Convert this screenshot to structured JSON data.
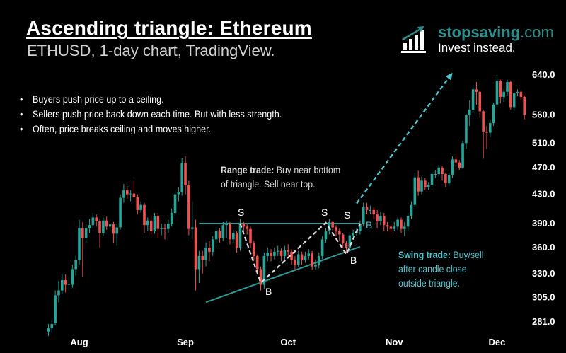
{
  "header": {
    "title": "Ascending triangle: Ethereum",
    "subtitle": "ETHUSD, 1-day chart, TradingView."
  },
  "bullets": [
    "Buyers push price up to a ceiling.",
    "Sellers push price back down each time. But with less strength.",
    "Often, price breaks ceiling and moves higher."
  ],
  "logo": {
    "brand_bold": "stopsaving",
    "brand_suffix": ".com",
    "tagline": "Invest instead.",
    "icon": "bar-chart-up-arrow-icon",
    "color": "#2a8f8d"
  },
  "notes": {
    "range_bold": "Range trade:",
    "range_text_1": " Buy near bottom",
    "range_text_2": "of triangle. Sell near top.",
    "swing_bold": "Swing trade:",
    "swing_text_1": " Buy/sell",
    "swing_text_2": "after candle close",
    "swing_text_3": "outside triangle."
  },
  "labels": {
    "sell": "S",
    "buy": "B"
  },
  "chart_data": {
    "type": "candlestick",
    "symbol": "ETHUSD",
    "interval": "1-day",
    "y_scale": "log",
    "ylim": [
      272,
      660
    ],
    "y_ticks": [
      640.0,
      560.0,
      510.0,
      470.0,
      430.0,
      390.0,
      360.0,
      330.0,
      305.0,
      281.0
    ],
    "y_tick_labels": [
      "640.0",
      "560.0",
      "510.0",
      "470.0",
      "430.0",
      "390.0",
      "360.0",
      "330.0",
      "305.0",
      "281.0"
    ],
    "x_ticks": [
      {
        "label": "Aug",
        "date": "08-01"
      },
      {
        "label": "Sep",
        "date": "09-01"
      },
      {
        "label": "Oct",
        "date": "10-01"
      },
      {
        "label": "Nov",
        "date": "11-01"
      },
      {
        "label": "Dec",
        "date": "12-01"
      }
    ],
    "grid": false,
    "colors": {
      "up": "#26a69a",
      "down": "#ef5350",
      "triangle": "#2a9d9a",
      "breakout": "#4fc6cf",
      "swing": "#dddddd",
      "background": "#000000"
    },
    "candle_fields": [
      "date",
      "open",
      "high",
      "low",
      "close"
    ],
    "candles": [
      [
        "07-23",
        272,
        279,
        268,
        275
      ],
      [
        "07-24",
        275,
        282,
        271,
        279
      ],
      [
        "07-25",
        280,
        312,
        278,
        307
      ],
      [
        "07-26",
        307,
        322,
        300,
        312
      ],
      [
        "07-27",
        312,
        330,
        308,
        323
      ],
      [
        "07-28",
        323,
        329,
        310,
        318
      ],
      [
        "07-29",
        318,
        326,
        312,
        319
      ],
      [
        "07-30",
        318,
        340,
        315,
        335
      ],
      [
        "07-31",
        335,
        350,
        328,
        345
      ],
      [
        "08-01",
        345,
        395,
        340,
        384
      ],
      [
        "08-02",
        384,
        392,
        326,
        372
      ],
      [
        "08-03",
        372,
        390,
        366,
        384
      ],
      [
        "08-04",
        384,
        396,
        378,
        388
      ],
      [
        "08-05",
        388,
        404,
        384,
        398
      ],
      [
        "08-06",
        398,
        402,
        386,
        393
      ],
      [
        "08-07",
        393,
        396,
        360,
        378
      ],
      [
        "08-08",
        378,
        398,
        374,
        394
      ],
      [
        "08-09",
        394,
        399,
        382,
        386
      ],
      [
        "08-10",
        386,
        394,
        380,
        389
      ],
      [
        "08-11",
        389,
        392,
        365,
        377
      ],
      [
        "08-12",
        377,
        390,
        362,
        385
      ],
      [
        "08-13",
        385,
        430,
        382,
        425
      ],
      [
        "08-14",
        425,
        445,
        418,
        436
      ],
      [
        "08-15",
        436,
        442,
        424,
        430
      ],
      [
        "08-16",
        430,
        436,
        420,
        431
      ],
      [
        "08-17",
        431,
        450,
        422,
        426
      ],
      [
        "08-18",
        426,
        430,
        402,
        408
      ],
      [
        "08-19",
        408,
        420,
        404,
        415
      ],
      [
        "08-20",
        415,
        418,
        378,
        388
      ],
      [
        "08-21",
        388,
        398,
        380,
        394
      ],
      [
        "08-22",
        394,
        400,
        376,
        380
      ],
      [
        "08-23",
        380,
        404,
        377,
        400
      ],
      [
        "08-24",
        400,
        404,
        372,
        383
      ],
      [
        "08-25",
        383,
        390,
        375,
        384
      ],
      [
        "08-26",
        384,
        390,
        370,
        383
      ],
      [
        "08-27",
        383,
        395,
        378,
        390
      ],
      [
        "08-28",
        390,
        410,
        386,
        404
      ],
      [
        "08-29",
        404,
        432,
        400,
        430
      ],
      [
        "08-30",
        430,
        440,
        420,
        433
      ],
      [
        "08-31",
        433,
        485,
        428,
        477
      ],
      [
        "09-01",
        477,
        488,
        430,
        443
      ],
      [
        "09-02",
        443,
        450,
        375,
        383
      ],
      [
        "09-03",
        383,
        420,
        370,
        385
      ],
      [
        "09-04",
        385,
        395,
        312,
        335
      ],
      [
        "09-05",
        335,
        356,
        320,
        350
      ],
      [
        "09-06",
        350,
        356,
        330,
        345
      ],
      [
        "09-07",
        345,
        366,
        338,
        360
      ],
      [
        "09-08",
        360,
        368,
        344,
        355
      ],
      [
        "09-09",
        355,
        374,
        350,
        370
      ],
      [
        "09-10",
        370,
        386,
        364,
        380
      ],
      [
        "09-11",
        380,
        384,
        366,
        372
      ],
      [
        "09-12",
        372,
        392,
        368,
        388
      ],
      [
        "09-13",
        388,
        394,
        372,
        390
      ],
      [
        "09-14",
        390,
        392,
        364,
        370
      ],
      [
        "09-15",
        370,
        382,
        366,
        378
      ],
      [
        "09-16",
        378,
        380,
        354,
        360
      ],
      [
        "09-17",
        360,
        396,
        356,
        390
      ],
      [
        "09-18",
        390,
        392,
        378,
        386
      ],
      [
        "09-19",
        386,
        390,
        376,
        383
      ],
      [
        "09-20",
        383,
        386,
        360,
        365
      ],
      [
        "09-21",
        365,
        368,
        345,
        350
      ],
      [
        "09-22",
        350,
        352,
        330,
        335
      ],
      [
        "09-23",
        335,
        338,
        312,
        318
      ],
      [
        "09-24",
        318,
        354,
        314,
        350
      ],
      [
        "09-25",
        350,
        360,
        344,
        354
      ],
      [
        "09-26",
        354,
        358,
        344,
        350
      ],
      [
        "09-27",
        350,
        360,
        346,
        355
      ],
      [
        "09-28",
        355,
        362,
        350,
        356
      ],
      [
        "09-29",
        356,
        359,
        344,
        350
      ],
      [
        "09-30",
        350,
        362,
        346,
        357
      ],
      [
        "10-01",
        357,
        364,
        350,
        355
      ],
      [
        "10-02",
        355,
        358,
        340,
        345
      ],
      [
        "10-03",
        345,
        350,
        334,
        340
      ],
      [
        "10-04",
        340,
        356,
        337,
        352
      ],
      [
        "10-05",
        352,
        355,
        340,
        345
      ],
      [
        "10-06",
        345,
        355,
        342,
        350
      ],
      [
        "10-07",
        350,
        358,
        346,
        353
      ],
      [
        "10-08",
        353,
        356,
        334,
        338
      ],
      [
        "10-09",
        338,
        346,
        334,
        340
      ],
      [
        "10-10",
        340,
        354,
        336,
        350
      ],
      [
        "10-11",
        350,
        374,
        346,
        370
      ],
      [
        "10-12",
        370,
        384,
        366,
        380
      ],
      [
        "10-13",
        380,
        396,
        376,
        392
      ],
      [
        "10-14",
        392,
        394,
        380,
        385
      ],
      [
        "10-15",
        385,
        388,
        374,
        380
      ],
      [
        "10-16",
        380,
        384,
        368,
        376
      ],
      [
        "10-17",
        376,
        378,
        360,
        365
      ],
      [
        "10-18",
        365,
        368,
        354,
        360
      ],
      [
        "10-19",
        360,
        378,
        356,
        375
      ],
      [
        "10-20",
        375,
        382,
        370,
        378
      ],
      [
        "10-21",
        378,
        384,
        374,
        380
      ],
      [
        "10-22",
        380,
        394,
        376,
        390
      ],
      [
        "10-23",
        390,
        418,
        386,
        412
      ],
      [
        "10-24",
        412,
        418,
        402,
        408
      ],
      [
        "10-25",
        408,
        414,
        402,
        408
      ],
      [
        "10-26",
        408,
        412,
        396,
        402
      ],
      [
        "10-27",
        402,
        408,
        384,
        393
      ],
      [
        "10-28",
        393,
        406,
        388,
        400
      ],
      [
        "10-29",
        400,
        404,
        380,
        388
      ],
      [
        "10-30",
        388,
        392,
        380,
        386
      ],
      [
        "10-31",
        386,
        390,
        376,
        383
      ],
      [
        "11-01",
        383,
        392,
        380,
        386
      ],
      [
        "11-02",
        386,
        398,
        382,
        395
      ],
      [
        "11-03",
        395,
        398,
        378,
        383
      ],
      [
        "11-04",
        383,
        392,
        374,
        386
      ],
      [
        "11-05",
        386,
        404,
        380,
        400
      ],
      [
        "11-06",
        400,
        420,
        396,
        415
      ],
      [
        "11-07",
        415,
        462,
        412,
        455
      ],
      [
        "11-08",
        455,
        465,
        428,
        434
      ],
      [
        "11-09",
        434,
        456,
        430,
        450
      ],
      [
        "11-10",
        450,
        454,
        436,
        440
      ],
      [
        "11-11",
        440,
        448,
        436,
        444
      ],
      [
        "11-12",
        444,
        466,
        440,
        460
      ],
      [
        "11-13",
        460,
        466,
        454,
        460
      ],
      [
        "11-14",
        460,
        474,
        456,
        470
      ],
      [
        "11-15",
        470,
        473,
        450,
        460
      ],
      [
        "11-16",
        460,
        462,
        440,
        446
      ],
      [
        "11-17",
        446,
        462,
        442,
        458
      ],
      [
        "11-18",
        458,
        488,
        454,
        483
      ],
      [
        "11-19",
        483,
        492,
        472,
        478
      ],
      [
        "11-20",
        478,
        482,
        466,
        470
      ],
      [
        "11-21",
        470,
        514,
        468,
        510
      ],
      [
        "11-22",
        510,
        562,
        500,
        560
      ],
      [
        "11-23",
        560,
        588,
        540,
        570
      ],
      [
        "11-24",
        570,
        618,
        566,
        610
      ],
      [
        "11-25",
        610,
        625,
        580,
        605
      ],
      [
        "11-26",
        605,
        608,
        555,
        567
      ],
      [
        "11-27",
        567,
        570,
        484,
        530
      ],
      [
        "11-28",
        530,
        540,
        500,
        528
      ],
      [
        "11-29",
        528,
        550,
        520,
        545
      ],
      [
        "11-30",
        545,
        584,
        540,
        580
      ],
      [
        "12-01",
        580,
        640,
        575,
        628
      ],
      [
        "12-02",
        628,
        630,
        582,
        595
      ],
      [
        "12-03",
        595,
        610,
        585,
        605
      ],
      [
        "12-04",
        605,
        630,
        598,
        625
      ],
      [
        "12-05",
        625,
        628,
        570,
        575
      ],
      [
        "12-06",
        575,
        604,
        568,
        602
      ],
      [
        "12-07",
        602,
        610,
        596,
        605
      ],
      [
        "12-08",
        605,
        608,
        588,
        595
      ],
      [
        "12-09",
        595,
        598,
        552,
        560
      ]
    ],
    "annotations": {
      "ceiling": [
        [
          "09-05",
          390
        ],
        [
          "10-22",
          390
        ]
      ],
      "rising_support": [
        [
          "09-07",
          300
        ],
        [
          "10-22",
          361
        ]
      ],
      "range_swings": [
        [
          "09-17",
          390
        ],
        [
          "09-23",
          320
        ],
        [
          "10-12",
          391
        ],
        [
          "10-18",
          352
        ],
        [
          "10-22",
          390
        ]
      ],
      "breakout_arrow": [
        [
          "10-21",
          417
        ],
        [
          "11-18",
          645
        ]
      ]
    }
  }
}
